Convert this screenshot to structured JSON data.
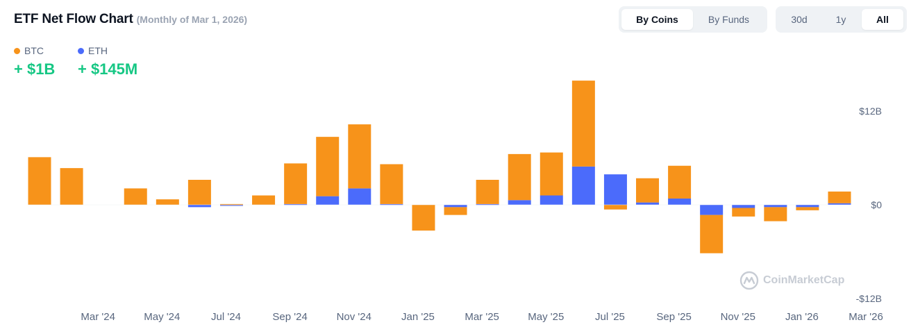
{
  "header": {
    "title": "ETF Net Flow Chart",
    "subtitle": "(Monthly of Mar 1, 2026)"
  },
  "toggles": {
    "view": {
      "options": [
        "By Coins",
        "By Funds"
      ],
      "selected": "By Coins"
    },
    "range": {
      "options": [
        "30d",
        "1y",
        "All"
      ],
      "selected": "All"
    }
  },
  "legend": [
    {
      "name": "BTC",
      "value": "+ $1B",
      "color": "#f7931a"
    },
    {
      "name": "ETH",
      "value": "+ $145M",
      "color": "#4b6bfb"
    }
  ],
  "watermark": {
    "text": "CoinMarketCap",
    "icon": "coinmarketcap-logo-icon"
  },
  "chart_data": {
    "type": "bar",
    "stacked": true,
    "unit": "$B",
    "ylim": [
      -12,
      12
    ],
    "y_ticks": [
      {
        "value": 12,
        "label": "$12B"
      },
      {
        "value": 0,
        "label": "$0"
      },
      {
        "value": -12,
        "label": "-$12B"
      }
    ],
    "categories": [
      "Jan '24",
      "Feb '24",
      "Mar '24",
      "Apr '24",
      "May '24",
      "Jun '24",
      "Jul '24",
      "Aug '24",
      "Sep '24",
      "Oct '24",
      "Nov '24",
      "Dec '24",
      "Jan '25",
      "Feb '25",
      "Mar '25",
      "Apr '25",
      "May '25",
      "Jun '25",
      "Jul '25",
      "Aug '25",
      "Sep '25",
      "Oct '25",
      "Nov '25",
      "Dec '25",
      "Jan '26",
      "Feb '26"
    ],
    "x_tick_labels": [
      "Mar '24",
      "May '24",
      "Jul '24",
      "Sep '24",
      "Nov '24",
      "Jan '25",
      "Mar '25",
      "May '25",
      "Jul '25",
      "Sep '25",
      "Nov '25",
      "Jan '26",
      "Mar '26"
    ],
    "series": [
      {
        "name": "BTC",
        "color": "#f7931a",
        "values": [
          6.1,
          4.7,
          0,
          2.1,
          0.7,
          3.2,
          0.1,
          1.2,
          5.2,
          7.6,
          8.2,
          5.1,
          -3.3,
          -1.0,
          3.1,
          5.9,
          5.5,
          11.0,
          -0.6,
          3.1,
          4.2,
          -4.9,
          -1.1,
          -1.8,
          -0.4,
          1.5
        ]
      },
      {
        "name": "ETH",
        "color": "#4b6bfb",
        "values": [
          0,
          0,
          0,
          0,
          0,
          -0.3,
          -0.1,
          0,
          0.1,
          1.1,
          2.1,
          0.1,
          0,
          -0.3,
          0.1,
          0.6,
          1.2,
          4.9,
          3.9,
          0.3,
          0.8,
          -1.3,
          -0.4,
          -0.3,
          -0.3,
          0.2
        ]
      }
    ]
  }
}
